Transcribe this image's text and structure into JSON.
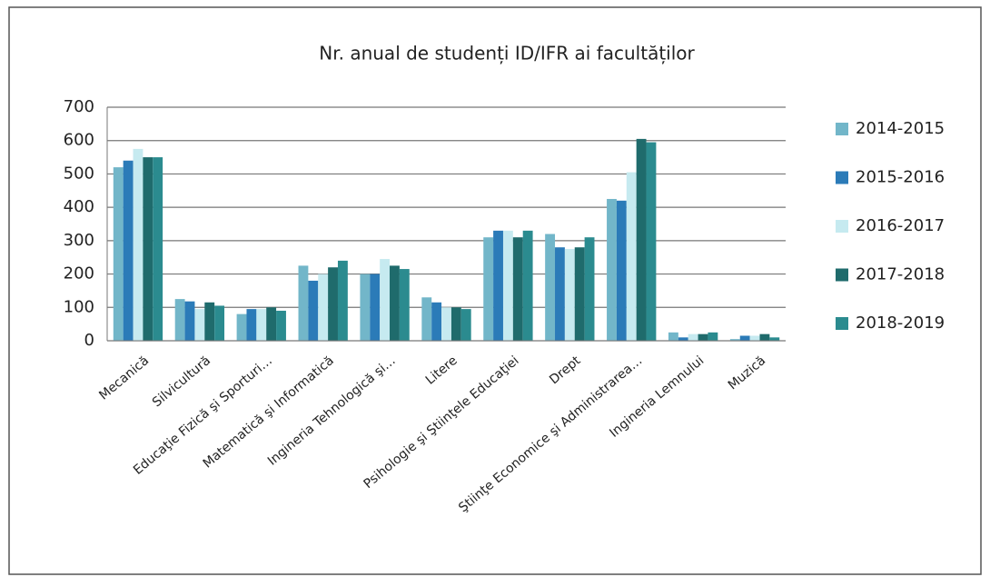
{
  "chart_data": {
    "type": "bar",
    "title": "Nr. anual de studenți ID/IFR ai facultăților",
    "categories": [
      "Mecanică",
      "Silvicultură",
      "Educaţie Fizică şi Sporturi…",
      "Matematică şi Informatică",
      "Ingineria Tehnologică şi…",
      "Litere",
      "Psihologie şi Ştiinţele Educaţiei",
      "Drept",
      "Ştiinţe Economice şi Administrarea…",
      "Ingineria Lemnului",
      "Muzică"
    ],
    "series": [
      {
        "name": "2014-2015",
        "color": "#72b6c9",
        "values": [
          520,
          125,
          80,
          225,
          200,
          130,
          310,
          320,
          425,
          25,
          5
        ]
      },
      {
        "name": "2015-2016",
        "color": "#2b7bb8",
        "values": [
          540,
          118,
          95,
          180,
          200,
          115,
          330,
          280,
          420,
          10,
          15
        ]
      },
      {
        "name": "2016-2017",
        "color": "#c6eaf0",
        "values": [
          575,
          95,
          95,
          200,
          245,
          100,
          330,
          275,
          505,
          20,
          15
        ]
      },
      {
        "name": "2017-2018",
        "color": "#1f6b6c",
        "values": [
          550,
          115,
          100,
          220,
          225,
          100,
          310,
          280,
          605,
          20,
          20
        ]
      },
      {
        "name": "2018-2019",
        "color": "#2b8b8f",
        "values": [
          550,
          105,
          90,
          240,
          215,
          95,
          330,
          310,
          595,
          25,
          10
        ]
      }
    ],
    "ylim": [
      0,
      700
    ],
    "yticks": [
      0,
      100,
      200,
      300,
      400,
      500,
      600,
      700
    ],
    "grid": true,
    "legend": "right"
  }
}
